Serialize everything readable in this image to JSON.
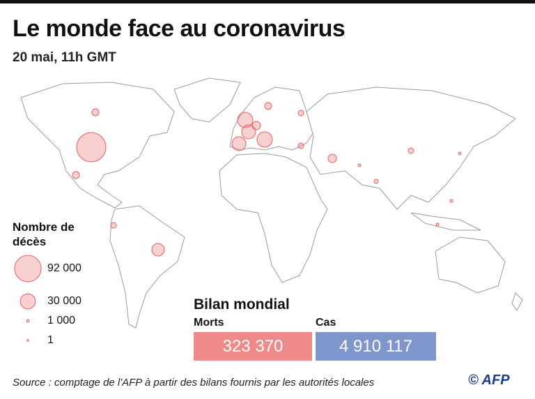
{
  "header": {
    "title": "Le monde face au coronavirus",
    "subtitle": "20 mai, 11h GMT"
  },
  "legend": {
    "title": "Nombre de décès",
    "items": [
      {
        "value": 92000,
        "label": "92 000"
      },
      {
        "value": 30000,
        "label": "30 000"
      },
      {
        "value": 1000,
        "label": "1 000"
      },
      {
        "value": 1,
        "label": "1"
      }
    ]
  },
  "summary": {
    "title": "Bilan mondial",
    "deaths": {
      "label": "Morts",
      "value": "323 370"
    },
    "cases": {
      "label": "Cas",
      "value": "4 910 117"
    }
  },
  "footer": {
    "source": "Source : comptage de l'AFP à partir des bilans fournis par les autorités locales",
    "credit": "© AFP"
  }
}
